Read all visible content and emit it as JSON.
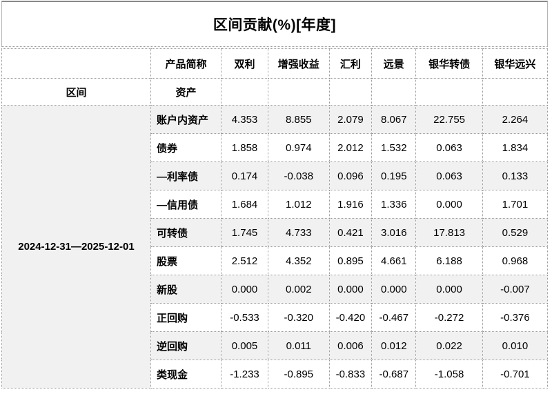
{
  "title": "区间贡献(%)[年度]",
  "chart_data": {
    "type": "table",
    "title": "区间贡献(%)[年度]",
    "corner_header": "",
    "product_header_label": "产品简称",
    "products": [
      "双利",
      "增强收益",
      "汇利",
      "远景",
      "银华转债",
      "银华远兴"
    ],
    "interval_header": "区间",
    "asset_header": "资产",
    "interval": "2024-12-31—2025-12-01",
    "rows": [
      {
        "label": "账户内资产",
        "values": [
          "4.353",
          "8.855",
          "2.079",
          "8.067",
          "22.755",
          "2.264"
        ]
      },
      {
        "label": "债券",
        "values": [
          "1.858",
          "0.974",
          "2.012",
          "1.532",
          "0.063",
          "1.834"
        ]
      },
      {
        "label": "—利率债",
        "values": [
          "0.174",
          "-0.038",
          "0.096",
          "0.195",
          "0.063",
          "0.133"
        ]
      },
      {
        "label": "—信用债",
        "values": [
          "1.684",
          "1.012",
          "1.916",
          "1.336",
          "0.000",
          "1.701"
        ]
      },
      {
        "label": "可转债",
        "values": [
          "1.745",
          "4.733",
          "0.421",
          "3.016",
          "17.813",
          "0.529"
        ]
      },
      {
        "label": "股票",
        "values": [
          "2.512",
          "4.352",
          "0.895",
          "4.661",
          "6.188",
          "0.968"
        ]
      },
      {
        "label": "新股",
        "values": [
          "0.000",
          "0.002",
          "0.000",
          "0.000",
          "0.000",
          "-0.007"
        ]
      },
      {
        "label": "正回购",
        "values": [
          "-0.533",
          "-0.320",
          "-0.420",
          "-0.467",
          "-0.272",
          "-0.376"
        ]
      },
      {
        "label": "逆回购",
        "values": [
          "0.005",
          "0.011",
          "0.006",
          "0.012",
          "0.022",
          "0.010"
        ]
      },
      {
        "label": "类现金",
        "values": [
          "-1.233",
          "-0.895",
          "-0.833",
          "-0.687",
          "-1.058",
          "-0.701"
        ]
      }
    ]
  },
  "colors": {
    "stripe": "#f1f1f1",
    "grid_border": "#999999",
    "outer_top_border": "#8a8a8a",
    "text": "#000000",
    "background": "#ffffff"
  }
}
